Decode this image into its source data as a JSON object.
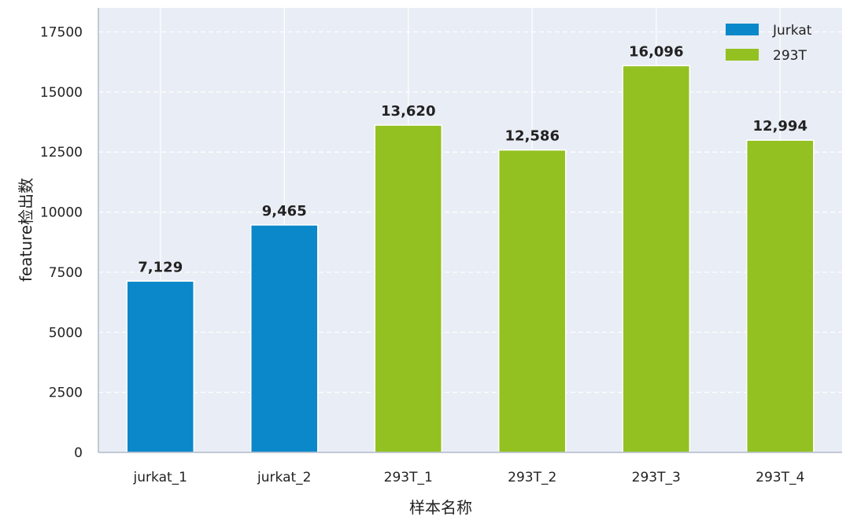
{
  "chart_data": {
    "type": "bar",
    "title": "",
    "xlabel": "样本名称",
    "ylabel": "feature检出数",
    "ylim": [
      0,
      18500
    ],
    "yticks": [
      0,
      2500,
      5000,
      7500,
      10000,
      12500,
      15000,
      17500
    ],
    "grid": true,
    "legend_position": "top-right",
    "categories": [
      "jurkat_1",
      "jurkat_2",
      "293T_1",
      "293T_2",
      "293T_3",
      "293T_4"
    ],
    "values": [
      7129,
      9465,
      13620,
      12586,
      16096,
      12994
    ],
    "value_labels": [
      "7,129",
      "9,465",
      "13,620",
      "12,586",
      "16,096",
      "12,994"
    ],
    "groups": [
      "Jurkat",
      "Jurkat",
      "293T",
      "293T",
      "293T",
      "293T"
    ],
    "series": [
      {
        "name": "Jurkat",
        "color": "#0b88c9"
      },
      {
        "name": "293T",
        "color": "#93c122"
      }
    ],
    "background_color": "#e9edf5",
    "grid_color": "#ffffff"
  }
}
